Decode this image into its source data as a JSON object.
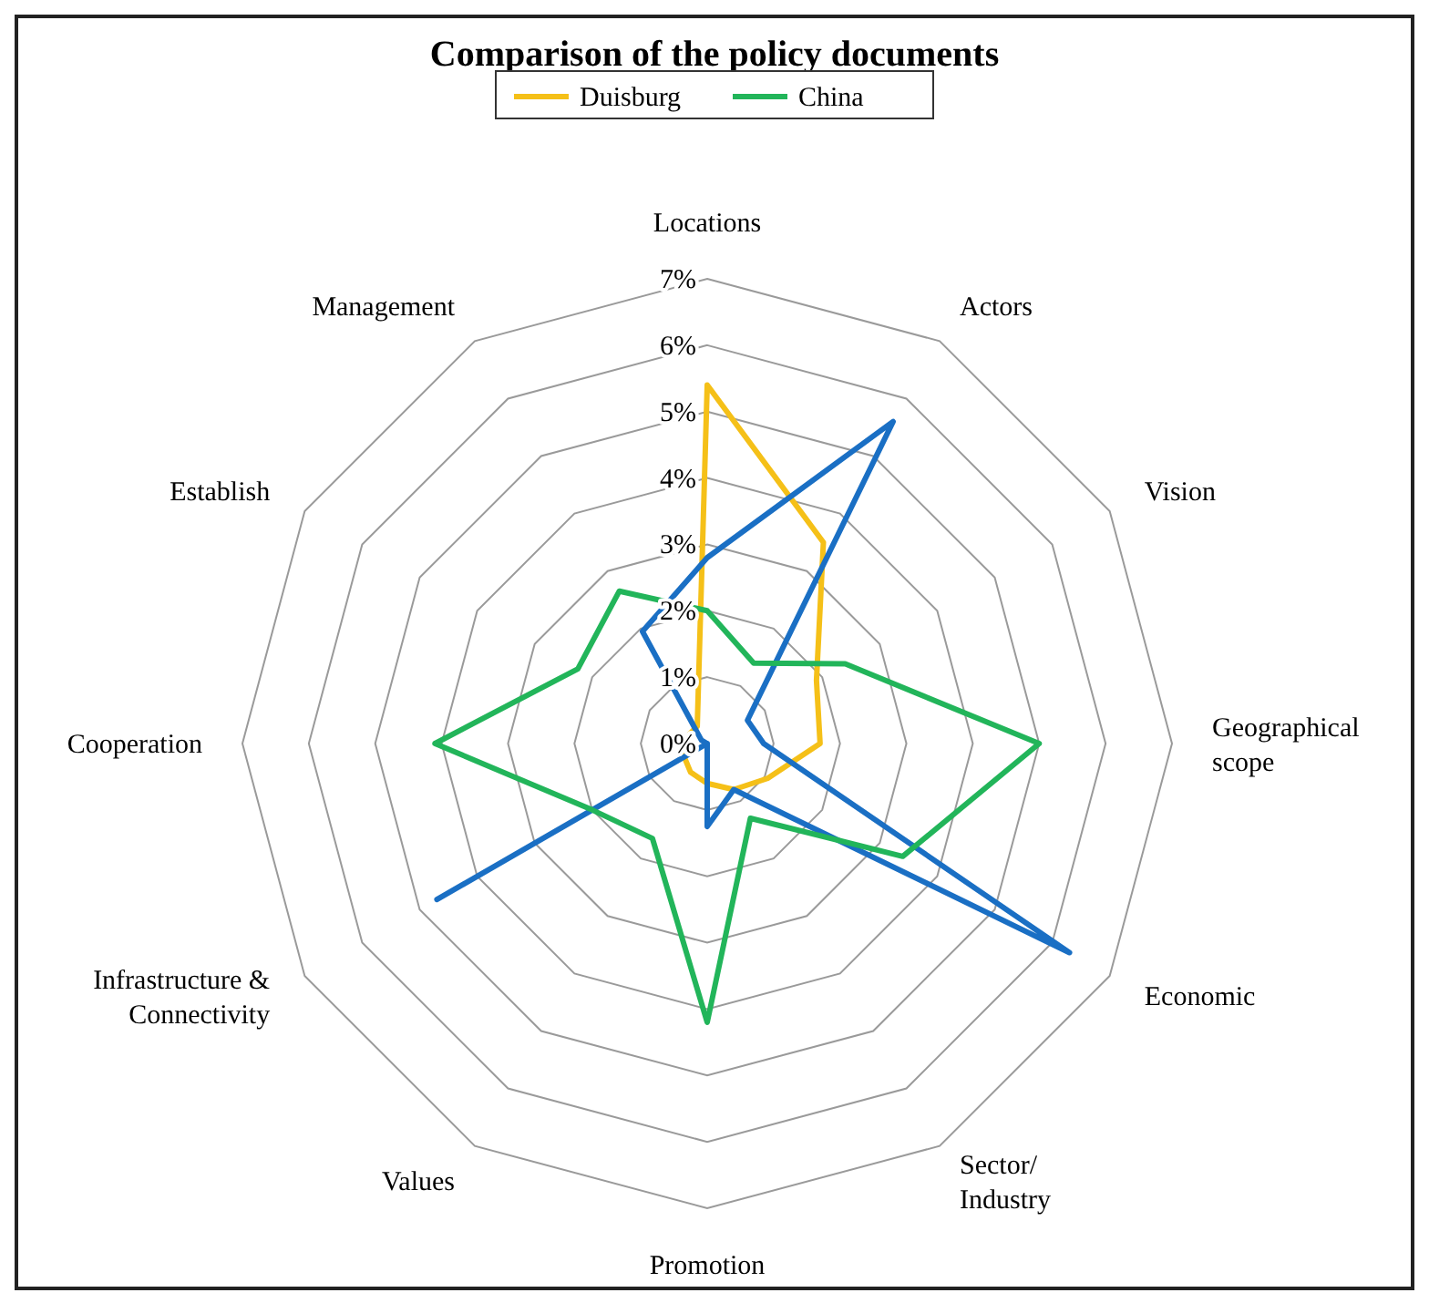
{
  "chart_data": {
    "type": "radar",
    "title": "Comparison of the policy documents",
    "categories": [
      "Locations",
      "Actors",
      "Vision",
      "Geographical scope",
      "Economic",
      "Sector/ Industry",
      "Promotion",
      "Values",
      "Infrastructure & Connectivity",
      "Cooperation",
      "Establish",
      "Management"
    ],
    "series": [
      {
        "name": "Duisburg",
        "color": "#f5c018",
        "values": [
          5.4,
          3.5,
          1.9,
          1.7,
          1.05,
          0.8,
          0.6,
          0.5,
          0.4,
          0.3,
          0.3,
          0.3
        ]
      },
      {
        "color": "#1a6fc4",
        "values": [
          2.8,
          5.6,
          0.7,
          0.85,
          6.3,
          0.8,
          1.25,
          0,
          4.7,
          0,
          0.1,
          1.95
        ]
      },
      {
        "name": "China",
        "color": "#22b55a",
        "values": [
          2.0,
          1.4,
          2.4,
          5.0,
          3.4,
          1.3,
          4.2,
          1.65,
          2.0,
          4.1,
          2.25,
          2.65
        ]
      }
    ],
    "ylim": [
      0,
      7
    ],
    "yticks": [
      {
        "value": 0,
        "label": "0%"
      },
      {
        "value": 1,
        "label": "1%"
      },
      {
        "value": 2,
        "label": "2%"
      },
      {
        "value": 3,
        "label": "3%"
      },
      {
        "value": 4,
        "label": "4%"
      },
      {
        "value": 5,
        "label": "5%"
      },
      {
        "value": 6,
        "label": "6%"
      },
      {
        "value": 7,
        "label": "7%"
      }
    ],
    "grid": true,
    "legend": "top",
    "marker": "none",
    "line_style": "solid"
  }
}
